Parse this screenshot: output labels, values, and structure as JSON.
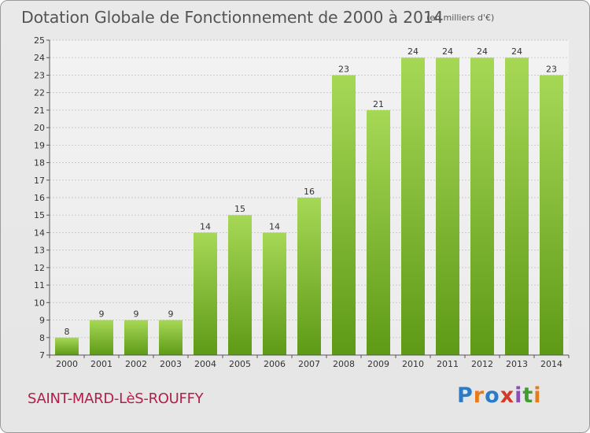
{
  "header": {
    "title": "Dotation Globale de Fonctionnement de 2000 à 2014",
    "subtitle": "(en milliers d'€)"
  },
  "footer": {
    "commune": "SAINT-MARD-LèS-ROUFFY",
    "logo_letters": [
      "P",
      "r",
      "o",
      "x",
      "i",
      "t",
      "i"
    ]
  },
  "chart_data": {
    "type": "bar",
    "title": "Dotation Globale de Fonctionnement de 2000 à 2014",
    "subtitle": "(en milliers d'€)",
    "categories": [
      "2000",
      "2001",
      "2002",
      "2003",
      "2004",
      "2005",
      "2006",
      "2007",
      "2008",
      "2009",
      "2010",
      "2011",
      "2012",
      "2013",
      "2014"
    ],
    "values": [
      8,
      9,
      9,
      9,
      14,
      15,
      14,
      16,
      23,
      21,
      24,
      24,
      24,
      24,
      23
    ],
    "ylim": [
      7,
      25
    ],
    "yticks": [
      7,
      8,
      9,
      10,
      11,
      12,
      13,
      14,
      15,
      16,
      17,
      18,
      19,
      20,
      21,
      22,
      23,
      24,
      25
    ],
    "grid": true,
    "bar_color": "#7ab82a",
    "bar_color_light": "#a6d856",
    "bar_color_dark": "#5e9a16"
  }
}
